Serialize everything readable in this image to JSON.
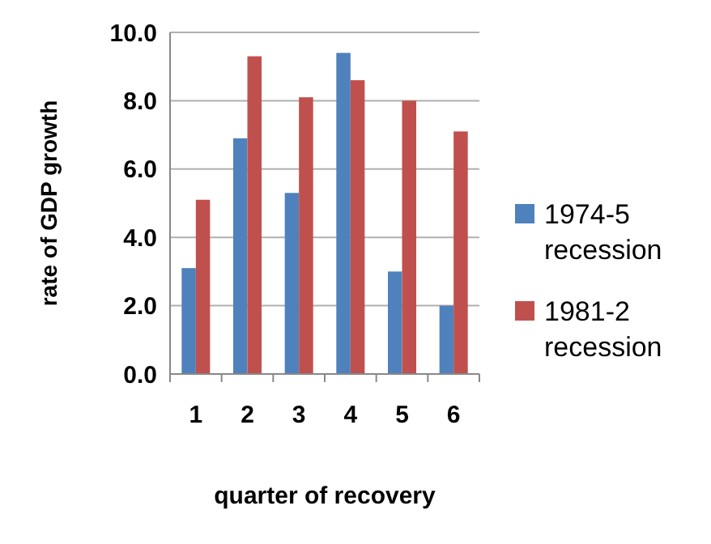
{
  "chart_data": {
    "type": "bar",
    "xlabel": "quarter of recovery",
    "ylabel": "rate of GDP growth",
    "categories": [
      "1",
      "2",
      "3",
      "4",
      "5",
      "6"
    ],
    "series": [
      {
        "name": "1974-5 recession",
        "color": "#4f81bd",
        "values": [
          3.1,
          6.9,
          5.3,
          9.4,
          3.0,
          2.0
        ]
      },
      {
        "name": "1981-2 recession",
        "color": "#c0504d",
        "values": [
          5.1,
          9.3,
          8.1,
          8.6,
          8.0,
          7.1
        ]
      }
    ],
    "ylim": [
      0,
      10
    ],
    "yticks": [
      {
        "value": 0,
        "label": "0.0"
      },
      {
        "value": 2,
        "label": "2.0"
      },
      {
        "value": 4,
        "label": "4.0"
      },
      {
        "value": 6,
        "label": "6.0"
      },
      {
        "value": 8,
        "label": "8.0"
      },
      {
        "value": 10,
        "label": "10.0"
      }
    ],
    "grid": "y",
    "legend": "right"
  }
}
